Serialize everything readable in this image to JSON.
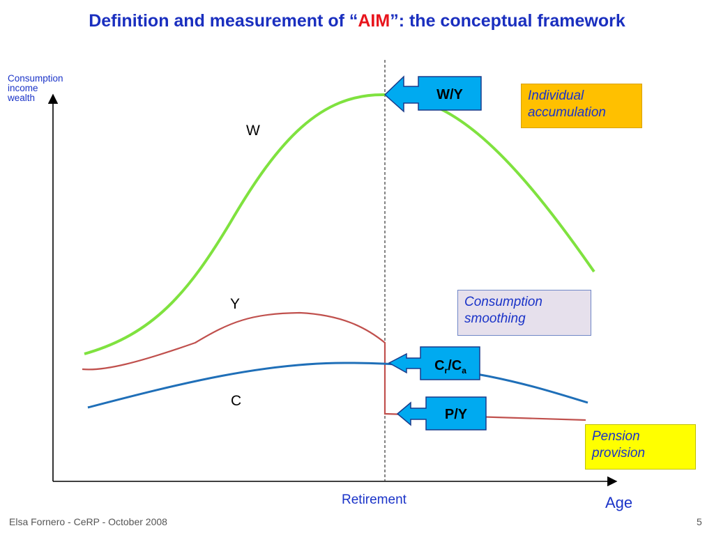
{
  "title": {
    "before": "Definition and measurement of “",
    "accent": "AIM",
    "after": "”: the conceptual framework"
  },
  "y_axis_label": [
    "Consumption",
    "income",
    "wealth"
  ],
  "x_axis_label": "Age",
  "retirement_label": "Retirement",
  "curve_labels": {
    "w": "W",
    "y": "Y",
    "c": "C"
  },
  "callouts": {
    "wy": "W/Y",
    "cr": "C",
    "cr_sub_r": "r",
    "cr_slash": "/C",
    "cr_sub_a": "a",
    "py": "P/Y"
  },
  "boxes": {
    "individual": [
      "Individual",
      "accumulation"
    ],
    "smoothing": [
      "Consumption",
      "smoothing"
    ],
    "pension": [
      "Pension",
      "provision"
    ]
  },
  "footer": "Elsa Fornero - CeRP - October 2008",
  "page_number": "5",
  "colors": {
    "wealth_curve": "#7fe23f",
    "income_curve": "#c0504d",
    "consumption_curve": "#1f6fb8",
    "callout_fill": "#00aaf0",
    "title": "#1a2fbf",
    "accent": "#e8141c"
  }
}
